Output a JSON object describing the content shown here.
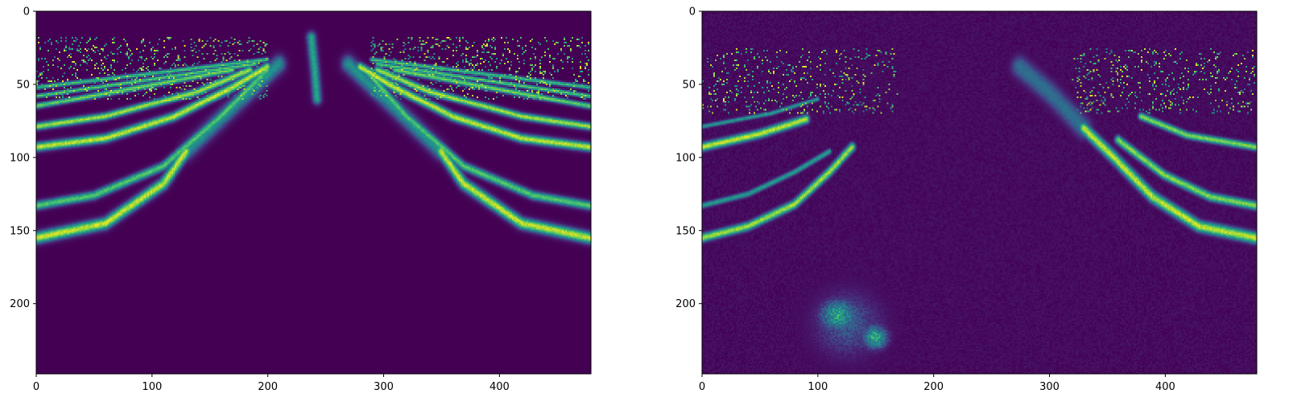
{
  "colors": {
    "background": "#440154",
    "background_noisy": "#46075a",
    "mid": "#21918c",
    "bright": "#fde725",
    "teal": "#2c728e",
    "axis": "#000000"
  },
  "chart_data": [
    {
      "type": "heatmap",
      "colormap": "viridis",
      "image_width": 480,
      "image_height": 248,
      "xlim": [
        0,
        479
      ],
      "ylim": [
        248,
        0
      ],
      "x_ticks": [
        0,
        100,
        200,
        300,
        400
      ],
      "y_ticks": [
        0,
        50,
        100,
        150,
        200
      ],
      "x_tick_labels": [
        "0",
        "100",
        "200",
        "300",
        "400"
      ],
      "y_tick_labels": [
        "0",
        "50",
        "100",
        "150",
        "200"
      ],
      "noise": false,
      "features": [
        {
          "kind": "speckle",
          "x": [
            0,
            200
          ],
          "y": [
            18,
            60
          ],
          "density": 0.5
        },
        {
          "kind": "speckle",
          "x": [
            290,
            479
          ],
          "y": [
            18,
            60
          ],
          "density": 0.5
        },
        {
          "kind": "curve",
          "points": [
            [
              0,
              52
            ],
            [
              200,
              33
            ]
          ],
          "brightness": 0.75,
          "width": 1.5
        },
        {
          "kind": "curve",
          "points": [
            [
              0,
              58
            ],
            [
              190,
              36
            ]
          ],
          "brightness": 0.8,
          "width": 1.5
        },
        {
          "kind": "curve",
          "points": [
            [
              0,
              65
            ],
            [
              170,
              40
            ]
          ],
          "brightness": 0.85,
          "width": 2
        },
        {
          "kind": "curve",
          "points": [
            [
              0,
              79
            ],
            [
              60,
              72
            ],
            [
              140,
              55
            ],
            [
              185,
              40
            ]
          ],
          "brightness": 0.95,
          "width": 2.5
        },
        {
          "kind": "curve",
          "points": [
            [
              0,
              93
            ],
            [
              60,
              87
            ],
            [
              120,
              72
            ],
            [
              170,
              52
            ],
            [
              200,
              38
            ]
          ],
          "brightness": 1,
          "width": 3
        },
        {
          "kind": "curve",
          "points": [
            [
              0,
              133
            ],
            [
              50,
              126
            ],
            [
              110,
              106
            ],
            [
              160,
              72
            ],
            [
              200,
              40
            ]
          ],
          "brightness": 0.8,
          "width": 3
        },
        {
          "kind": "curve",
          "points": [
            [
              0,
              155
            ],
            [
              60,
              145
            ],
            [
              110,
              118
            ],
            [
              130,
              96
            ]
          ],
          "brightness": 1,
          "width": 4
        },
        {
          "kind": "curve",
          "points": [
            [
              130,
              96
            ],
            [
              170,
              66
            ],
            [
              210,
              36
            ]
          ],
          "brightness": 0.55,
          "width": 6
        },
        {
          "kind": "curve",
          "points": [
            [
              479,
              52
            ],
            [
              290,
              33
            ]
          ],
          "brightness": 0.75,
          "width": 1.5
        },
        {
          "kind": "curve",
          "points": [
            [
              479,
              58
            ],
            [
              295,
              36
            ]
          ],
          "brightness": 0.8,
          "width": 1.5
        },
        {
          "kind": "curve",
          "points": [
            [
              479,
              65
            ],
            [
              310,
              40
            ]
          ],
          "brightness": 0.85,
          "width": 2
        },
        {
          "kind": "curve",
          "points": [
            [
              479,
              79
            ],
            [
              420,
              72
            ],
            [
              340,
              55
            ],
            [
              295,
              40
            ]
          ],
          "brightness": 0.95,
          "width": 2.5
        },
        {
          "kind": "curve",
          "points": [
            [
              479,
              93
            ],
            [
              420,
              87
            ],
            [
              360,
              72
            ],
            [
              310,
              52
            ],
            [
              280,
              38
            ]
          ],
          "brightness": 1,
          "width": 3
        },
        {
          "kind": "curve",
          "points": [
            [
              479,
              133
            ],
            [
              430,
              126
            ],
            [
              370,
              106
            ],
            [
              320,
              72
            ],
            [
              285,
              40
            ]
          ],
          "brightness": 0.8,
          "width": 3
        },
        {
          "kind": "curve",
          "points": [
            [
              479,
              155
            ],
            [
              420,
              145
            ],
            [
              370,
              118
            ],
            [
              350,
              96
            ]
          ],
          "brightness": 1,
          "width": 4
        },
        {
          "kind": "curve",
          "points": [
            [
              350,
              96
            ],
            [
              310,
              66
            ],
            [
              270,
              36
            ]
          ],
          "brightness": 0.55,
          "width": 6
        },
        {
          "kind": "curve",
          "points": [
            [
              238,
              18
            ],
            [
              241,
              40
            ],
            [
              243,
              60
            ]
          ],
          "brightness": 0.65,
          "width": 4
        }
      ]
    },
    {
      "type": "heatmap",
      "colormap": "viridis",
      "image_width": 480,
      "image_height": 248,
      "xlim": [
        0,
        479
      ],
      "ylim": [
        248,
        0
      ],
      "x_ticks": [
        0,
        100,
        200,
        300,
        400
      ],
      "y_ticks": [
        0,
        50,
        100,
        150,
        200
      ],
      "x_tick_labels": [
        "0",
        "100",
        "200",
        "300",
        "400"
      ],
      "y_tick_labels": [
        "0",
        "50",
        "100",
        "150",
        "200"
      ],
      "noise": true,
      "features": [
        {
          "kind": "speckle",
          "x": [
            0,
            170
          ],
          "y": [
            25,
            70
          ],
          "density": 0.35
        },
        {
          "kind": "speckle",
          "x": [
            320,
            479
          ],
          "y": [
            25,
            70
          ],
          "density": 0.35
        },
        {
          "kind": "curve",
          "points": [
            [
              0,
              93
            ],
            [
              50,
              84
            ],
            [
              90,
              74
            ]
          ],
          "brightness": 1,
          "width": 3
        },
        {
          "kind": "curve",
          "points": [
            [
              0,
              79
            ],
            [
              60,
              70
            ],
            [
              100,
              60
            ]
          ],
          "brightness": 0.6,
          "width": 1.5
        },
        {
          "kind": "curve",
          "points": [
            [
              0,
              133
            ],
            [
              40,
              125
            ],
            [
              80,
              110
            ],
            [
              110,
              96
            ]
          ],
          "brightness": 0.6,
          "width": 2
        },
        {
          "kind": "curve",
          "points": [
            [
              0,
              155
            ],
            [
              40,
              147
            ],
            [
              80,
              132
            ],
            [
              110,
              110
            ],
            [
              130,
              93
            ]
          ],
          "brightness": 0.95,
          "width": 3
        },
        {
          "kind": "curve",
          "points": [
            [
              479,
              93
            ],
            [
              420,
              85
            ],
            [
              380,
              72
            ]
          ],
          "brightness": 0.9,
          "width": 2.5
        },
        {
          "kind": "curve",
          "points": [
            [
              479,
              133
            ],
            [
              440,
              127
            ],
            [
              400,
              112
            ],
            [
              360,
              88
            ]
          ],
          "brightness": 0.9,
          "width": 3
        },
        {
          "kind": "curve",
          "points": [
            [
              479,
              155
            ],
            [
              430,
              147
            ],
            [
              390,
              127
            ],
            [
              360,
              103
            ],
            [
              330,
              80
            ]
          ],
          "brightness": 1,
          "width": 4
        },
        {
          "kind": "curve",
          "points": [
            [
              330,
              80
            ],
            [
              300,
              55
            ],
            [
              275,
              38
            ]
          ],
          "brightness": 0.4,
          "width": 8
        },
        {
          "kind": "blob",
          "x": 118,
          "y": 208,
          "rx": 18,
          "ry": 12,
          "brightness": 0.75
        },
        {
          "kind": "blob",
          "x": 150,
          "y": 223,
          "rx": 12,
          "ry": 9,
          "brightness": 0.8
        },
        {
          "kind": "blob",
          "x": 126,
          "y": 214,
          "rx": 34,
          "ry": 26,
          "brightness": 0.35
        }
      ]
    }
  ]
}
